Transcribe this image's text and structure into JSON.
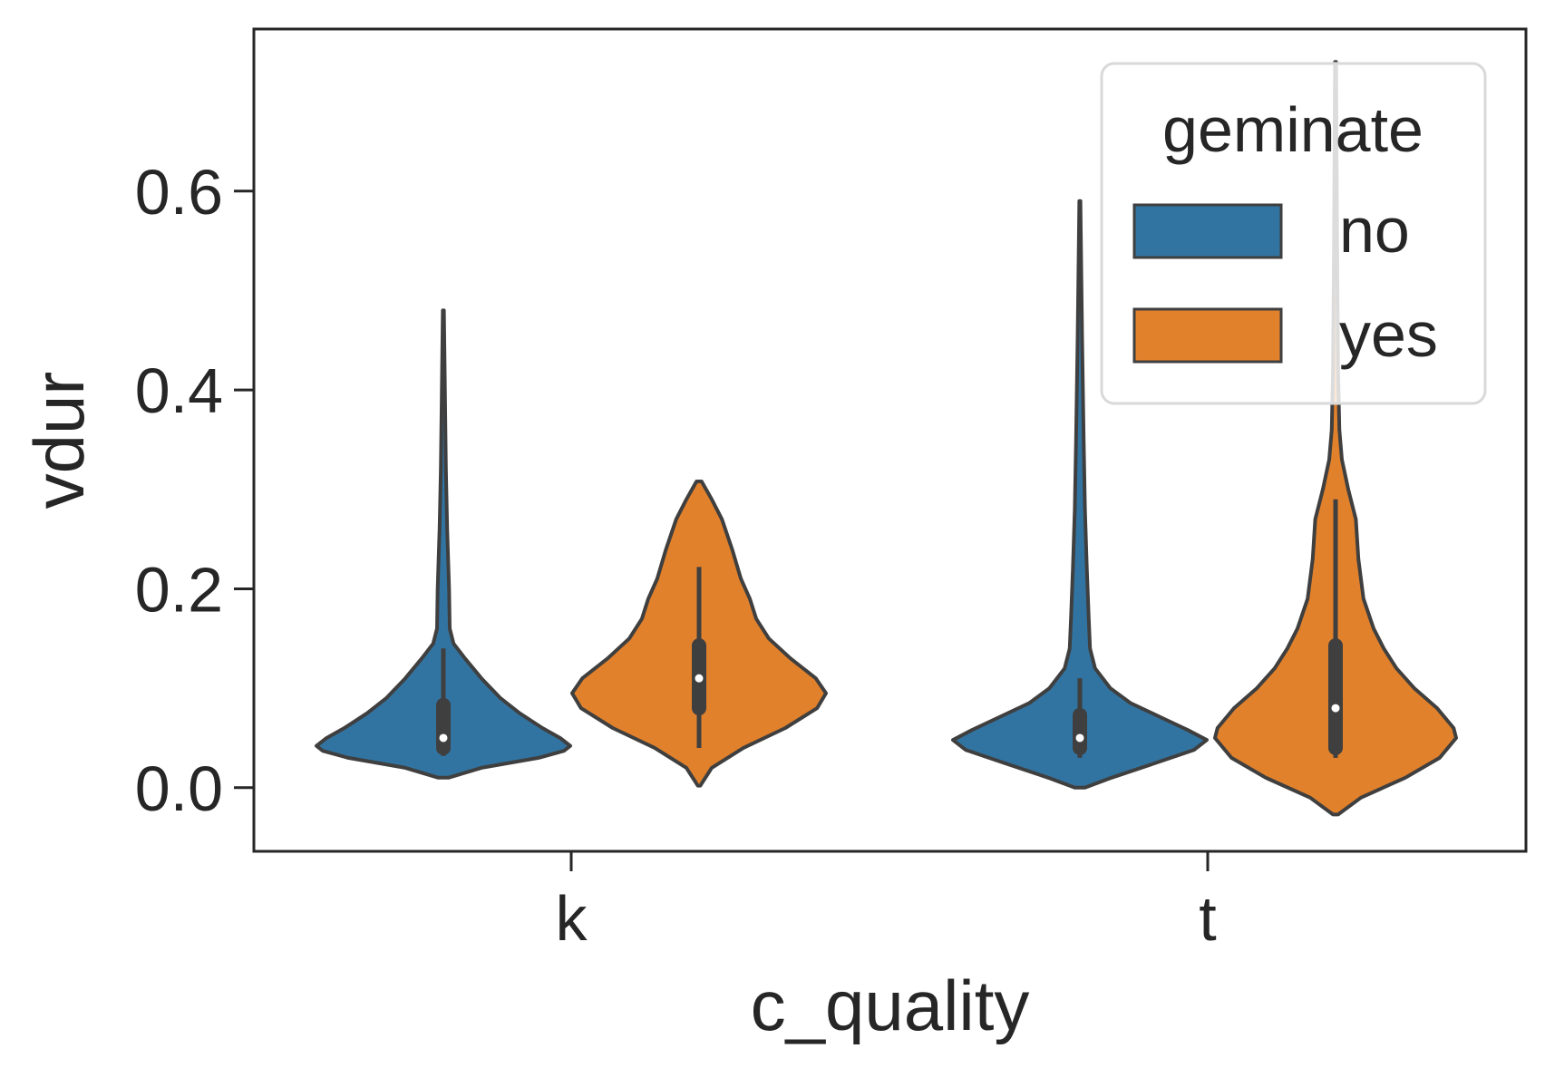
{
  "chart_data": {
    "type": "violin",
    "xlabel": "c_quality",
    "ylabel": "vdur",
    "categories": [
      "k",
      "t"
    ],
    "ylim": [
      -0.064,
      0.763
    ],
    "yticks": [
      0.0,
      0.2,
      0.4,
      0.6
    ],
    "ytick_labels": [
      "0.0",
      "0.2",
      "0.4",
      "0.6"
    ],
    "grid": false,
    "legend": {
      "title": "geminate",
      "placement": "top-right",
      "entries": [
        "no",
        "yes"
      ]
    },
    "series": [
      {
        "name": "no",
        "color": "#3274a1",
        "violins": [
          {
            "category": "k",
            "min": 0.01,
            "max": 0.48,
            "q1": 0.04,
            "median": 0.05,
            "q3": 0.083,
            "whisker_low": 0.032,
            "whisker_high": 0.14,
            "profile": [
              [
                0.01,
                0.04
              ],
              [
                0.02,
                0.3
              ],
              [
                0.03,
                0.75
              ],
              [
                0.037,
                0.95
              ],
              [
                0.042,
                1.0
              ],
              [
                0.05,
                0.92
              ],
              [
                0.06,
                0.78
              ],
              [
                0.075,
                0.6
              ],
              [
                0.09,
                0.45
              ],
              [
                0.11,
                0.3
              ],
              [
                0.13,
                0.17
              ],
              [
                0.145,
                0.08
              ],
              [
                0.16,
                0.05
              ],
              [
                0.2,
                0.045
              ],
              [
                0.26,
                0.03
              ],
              [
                0.32,
                0.02
              ],
              [
                0.4,
                0.012
              ],
              [
                0.48,
                0.004
              ]
            ]
          },
          {
            "category": "t",
            "min": 0.0,
            "max": 0.59,
            "q1": 0.04,
            "median": 0.05,
            "q3": 0.073,
            "whisker_low": 0.03,
            "whisker_high": 0.11,
            "profile": [
              [
                0.0,
                0.04
              ],
              [
                0.01,
                0.25
              ],
              [
                0.025,
                0.6
              ],
              [
                0.038,
                0.9
              ],
              [
                0.048,
                1.0
              ],
              [
                0.058,
                0.85
              ],
              [
                0.07,
                0.65
              ],
              [
                0.085,
                0.4
              ],
              [
                0.1,
                0.24
              ],
              [
                0.12,
                0.12
              ],
              [
                0.14,
                0.08
              ],
              [
                0.17,
                0.07
              ],
              [
                0.22,
                0.055
              ],
              [
                0.28,
                0.04
              ],
              [
                0.35,
                0.03
              ],
              [
                0.45,
                0.018
              ],
              [
                0.53,
                0.01
              ],
              [
                0.59,
                0.004
              ]
            ]
          }
        ]
      },
      {
        "name": "yes",
        "color": "#e1812c",
        "violins": [
          {
            "category": "k",
            "min": 0.002,
            "max": 0.308,
            "q1": 0.08,
            "median": 0.11,
            "q3": 0.143,
            "whisker_low": 0.04,
            "whisker_high": 0.222,
            "profile": [
              [
                0.002,
                0.01
              ],
              [
                0.02,
                0.1
              ],
              [
                0.04,
                0.35
              ],
              [
                0.06,
                0.68
              ],
              [
                0.08,
                0.93
              ],
              [
                0.095,
                1.0
              ],
              [
                0.11,
                0.92
              ],
              [
                0.13,
                0.72
              ],
              [
                0.15,
                0.55
              ],
              [
                0.17,
                0.45
              ],
              [
                0.19,
                0.4
              ],
              [
                0.21,
                0.33
              ],
              [
                0.24,
                0.26
              ],
              [
                0.27,
                0.18
              ],
              [
                0.29,
                0.1
              ],
              [
                0.308,
                0.02
              ]
            ]
          },
          {
            "category": "t",
            "min": -0.027,
            "max": 0.73,
            "q1": 0.04,
            "median": 0.08,
            "q3": 0.143,
            "whisker_low": 0.03,
            "whisker_high": 0.29,
            "profile": [
              [
                -0.027,
                0.02
              ],
              [
                -0.01,
                0.2
              ],
              [
                0.01,
                0.55
              ],
              [
                0.03,
                0.82
              ],
              [
                0.05,
                0.95
              ],
              [
                0.06,
                0.93
              ],
              [
                0.08,
                0.8
              ],
              [
                0.1,
                0.62
              ],
              [
                0.12,
                0.48
              ],
              [
                0.14,
                0.38
              ],
              [
                0.16,
                0.3
              ],
              [
                0.19,
                0.22
              ],
              [
                0.23,
                0.18
              ],
              [
                0.27,
                0.16
              ],
              [
                0.3,
                0.1
              ],
              [
                0.33,
                0.05
              ],
              [
                0.36,
                0.03
              ],
              [
                0.42,
                0.02
              ],
              [
                0.55,
                0.012
              ],
              [
                0.65,
                0.008
              ],
              [
                0.73,
                0.004
              ]
            ]
          }
        ]
      }
    ]
  }
}
